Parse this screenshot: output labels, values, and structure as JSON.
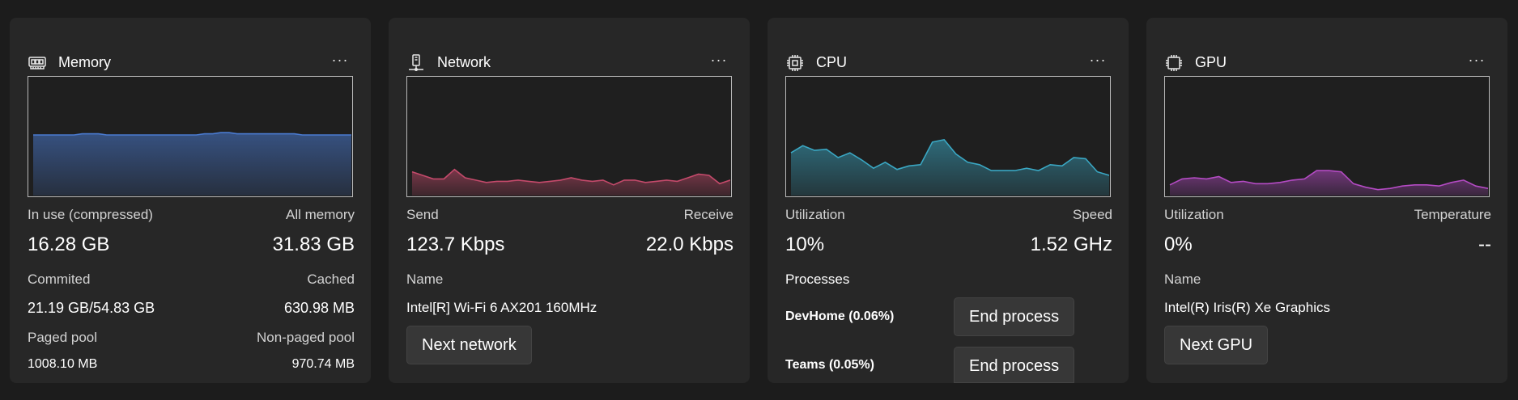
{
  "colors": {
    "memory": "#4a7bd1",
    "network": "#c44a6b",
    "cpu": "#3aa7c3",
    "gpu": "#b44bc4"
  },
  "memory": {
    "icon": "memory-icon",
    "title": "Memory",
    "more_label": "···",
    "in_use_label": "In use (compressed)",
    "all_memory_label": "All memory",
    "in_use_value": "16.28 GB",
    "all_memory_value": "31.83 GB",
    "committed_label": "Commited",
    "cached_label": "Cached",
    "committed_value": "21.19 GB/54.83 GB",
    "cached_value": "630.98 MB",
    "paged_pool_label": "Paged pool",
    "nonpaged_pool_label": "Non-paged pool",
    "paged_pool_value": "1008.10 MB",
    "nonpaged_pool_value": "970.74 MB",
    "graph": [
      51,
      51,
      51,
      51,
      51,
      51,
      52,
      52,
      52,
      51,
      51,
      51,
      51,
      51,
      51,
      51,
      51,
      51,
      51,
      51,
      51,
      52,
      52,
      53,
      53,
      52,
      52,
      52,
      52,
      52,
      52,
      52,
      52,
      51,
      51,
      51,
      51,
      51,
      51,
      51
    ]
  },
  "network": {
    "icon": "network-icon",
    "title": "Network",
    "more_label": "···",
    "send_label": "Send",
    "receive_label": "Receive",
    "send_value": "123.7 Kbps",
    "receive_value": "22.0 Kbps",
    "name_label": "Name",
    "name_value": "Intel[R] Wi-Fi 6 AX201 160MHz",
    "next_button": "Next network"
  },
  "network_graph": [
    20,
    17,
    14,
    14,
    22,
    15,
    13,
    11,
    12,
    12,
    13,
    12,
    11,
    12,
    13,
    15,
    13,
    12,
    13,
    9,
    13,
    13,
    11,
    12,
    13,
    12,
    15,
    18,
    17,
    10,
    13
  ],
  "cpu": {
    "icon": "cpu-icon",
    "title": "CPU",
    "more_label": "···",
    "utilization_label": "Utilization",
    "speed_label": "Speed",
    "utilization_value": "10%",
    "speed_value": "1.52 GHz",
    "processes_label": "Processes",
    "processes": [
      {
        "name": "DevHome (0.06%)",
        "button": "End process"
      },
      {
        "name": "Teams (0.05%)",
        "button": "End process"
      }
    ],
    "graph": [
      36,
      42,
      38,
      39,
      32,
      36,
      30,
      23,
      28,
      22,
      25,
      26,
      45,
      47,
      35,
      28,
      26,
      21,
      21,
      21,
      23,
      21,
      26,
      25,
      32,
      31,
      20,
      17
    ]
  },
  "gpu": {
    "icon": "gpu-icon",
    "title": "GPU",
    "more_label": "···",
    "utilization_label": "Utilization",
    "temperature_label": "Temperature",
    "utilization_value": "0%",
    "temperature_value": "--",
    "name_label": "Name",
    "name_value": "Intel(R) Iris(R) Xe Graphics",
    "next_button": "Next GPU",
    "graph": [
      9,
      14,
      15,
      14,
      16,
      11,
      12,
      10,
      10,
      11,
      13,
      14,
      21,
      21,
      20,
      10,
      7,
      5,
      6,
      8,
      9,
      9,
      8,
      11,
      13,
      8,
      6
    ]
  }
}
